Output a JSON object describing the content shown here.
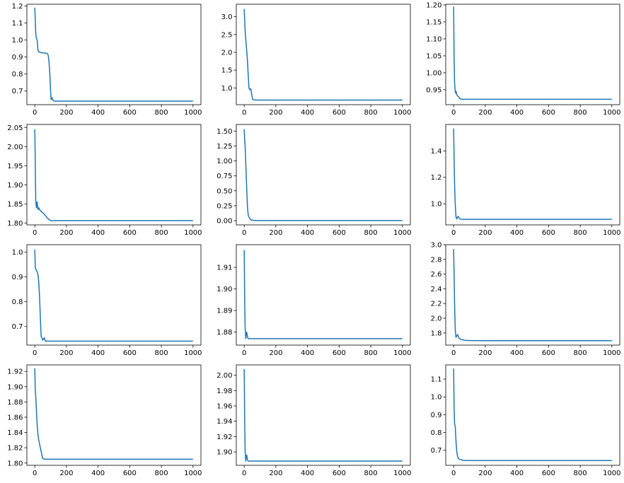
{
  "line_color": "#1f77b4",
  "chart_data": [
    {
      "type": "line",
      "xlim": [
        -50,
        1050
      ],
      "ylim": [
        0.62,
        1.21
      ],
      "xticks": [
        {
          "v": 0,
          "label": "0"
        },
        {
          "v": 200,
          "label": "200"
        },
        {
          "v": 400,
          "label": "400"
        },
        {
          "v": 600,
          "label": "600"
        },
        {
          "v": 800,
          "label": "800"
        },
        {
          "v": 1000,
          "label": "1000"
        }
      ],
      "yticks": [
        {
          "v": 0.7,
          "label": "0.7"
        },
        {
          "v": 0.8,
          "label": "0.8"
        },
        {
          "v": 0.9,
          "label": "0.9"
        },
        {
          "v": 1.0,
          "label": "1.0"
        },
        {
          "v": 1.1,
          "label": "1.1"
        },
        {
          "v": 1.2,
          "label": "1.2"
        }
      ],
      "x": [
        0,
        3,
        6,
        10,
        15,
        20,
        25,
        30,
        40,
        50,
        60,
        70,
        80,
        85,
        90,
        95,
        100,
        103,
        106,
        110,
        115,
        120,
        130,
        150,
        200,
        400,
        600,
        800,
        1000
      ],
      "y": [
        1.19,
        1.12,
        1.04,
        1.01,
        1.0,
        0.94,
        0.93,
        0.93,
        0.925,
        0.925,
        0.924,
        0.923,
        0.92,
        0.91,
        0.87,
        0.8,
        0.7,
        0.65,
        0.655,
        0.66,
        0.645,
        0.642,
        0.641,
        0.641,
        0.641,
        0.641,
        0.641,
        0.641,
        0.641
      ]
    },
    {
      "type": "line",
      "xlim": [
        -50,
        1050
      ],
      "ylim": [
        0.53,
        3.35
      ],
      "xticks": [
        {
          "v": 0,
          "label": "0"
        },
        {
          "v": 200,
          "label": "200"
        },
        {
          "v": 400,
          "label": "400"
        },
        {
          "v": 600,
          "label": "600"
        },
        {
          "v": 800,
          "label": "800"
        },
        {
          "v": 1000,
          "label": "1000"
        }
      ],
      "yticks": [
        {
          "v": 1.0,
          "label": "1.0"
        },
        {
          "v": 1.5,
          "label": "1.5"
        },
        {
          "v": 2.0,
          "label": "2.0"
        },
        {
          "v": 2.5,
          "label": "2.5"
        },
        {
          "v": 3.0,
          "label": "3.0"
        }
      ],
      "x": [
        0,
        3,
        6,
        10,
        15,
        20,
        25,
        30,
        35,
        40,
        45,
        50,
        55,
        60,
        70,
        80,
        100,
        200,
        400,
        600,
        800,
        1000
      ],
      "y": [
        3.22,
        2.9,
        2.6,
        2.35,
        2.1,
        1.8,
        1.4,
        1.0,
        0.95,
        0.98,
        0.9,
        0.75,
        0.67,
        0.67,
        0.66,
        0.66,
        0.66,
        0.66,
        0.66,
        0.66,
        0.66,
        0.66
      ]
    },
    {
      "type": "line",
      "xlim": [
        -50,
        1050
      ],
      "ylim": [
        0.906,
        1.202
      ],
      "xticks": [
        {
          "v": 0,
          "label": "0"
        },
        {
          "v": 200,
          "label": "200"
        },
        {
          "v": 400,
          "label": "400"
        },
        {
          "v": 600,
          "label": "600"
        },
        {
          "v": 800,
          "label": "800"
        },
        {
          "v": 1000,
          "label": "1000"
        }
      ],
      "yticks": [
        {
          "v": 0.95,
          "label": "0.95"
        },
        {
          "v": 1.0,
          "label": "1.00"
        },
        {
          "v": 1.05,
          "label": "1.05"
        },
        {
          "v": 1.1,
          "label": "1.10"
        },
        {
          "v": 1.15,
          "label": "1.15"
        },
        {
          "v": 1.2,
          "label": "1.20"
        }
      ],
      "x": [
        0,
        3,
        6,
        10,
        13,
        16,
        20,
        25,
        30,
        40,
        50,
        80,
        200,
        400,
        600,
        800,
        1000
      ],
      "y": [
        1.195,
        1.05,
        0.97,
        0.945,
        0.94,
        0.945,
        0.935,
        0.932,
        0.93,
        0.924,
        0.922,
        0.922,
        0.922,
        0.922,
        0.922,
        0.922,
        0.922
      ]
    },
    {
      "type": "line",
      "xlim": [
        -50,
        1050
      ],
      "ylim": [
        1.795,
        2.058
      ],
      "xticks": [
        {
          "v": 0,
          "label": "0"
        },
        {
          "v": 200,
          "label": "200"
        },
        {
          "v": 400,
          "label": "400"
        },
        {
          "v": 600,
          "label": "600"
        },
        {
          "v": 800,
          "label": "800"
        },
        {
          "v": 1000,
          "label": "1000"
        }
      ],
      "yticks": [
        {
          "v": 1.8,
          "label": "1.80"
        },
        {
          "v": 1.85,
          "label": "1.85"
        },
        {
          "v": 1.9,
          "label": "1.90"
        },
        {
          "v": 1.95,
          "label": "1.95"
        },
        {
          "v": 2.0,
          "label": "2.00"
        },
        {
          "v": 2.05,
          "label": "2.05"
        }
      ],
      "x": [
        0,
        3,
        6,
        10,
        15,
        20,
        25,
        30,
        40,
        50,
        60,
        70,
        80,
        90,
        100,
        120,
        200,
        400,
        600,
        800,
        1000
      ],
      "y": [
        2.045,
        1.96,
        1.86,
        1.84,
        1.855,
        1.835,
        1.84,
        1.835,
        1.83,
        1.827,
        1.823,
        1.818,
        1.813,
        1.809,
        1.806,
        1.806,
        1.806,
        1.806,
        1.806,
        1.806,
        1.806
      ]
    },
    {
      "type": "line",
      "xlim": [
        -50,
        1050
      ],
      "ylim": [
        -0.07,
        1.61
      ],
      "xticks": [
        {
          "v": 0,
          "label": "0"
        },
        {
          "v": 200,
          "label": "200"
        },
        {
          "v": 400,
          "label": "400"
        },
        {
          "v": 600,
          "label": "600"
        },
        {
          "v": 800,
          "label": "800"
        },
        {
          "v": 1000,
          "label": "1000"
        }
      ],
      "yticks": [
        {
          "v": 0.0,
          "label": "0.00"
        },
        {
          "v": 0.25,
          "label": "0.25"
        },
        {
          "v": 0.5,
          "label": "0.50"
        },
        {
          "v": 0.75,
          "label": "0.75"
        },
        {
          "v": 1.0,
          "label": "1.00"
        },
        {
          "v": 1.25,
          "label": "1.25"
        },
        {
          "v": 1.5,
          "label": "1.50"
        }
      ],
      "x": [
        0,
        3,
        6,
        10,
        15,
        20,
        25,
        30,
        35,
        40,
        50,
        60,
        80,
        100,
        200,
        400,
        600,
        800,
        1000
      ],
      "y": [
        1.53,
        1.35,
        1.25,
        0.95,
        0.6,
        0.25,
        0.1,
        0.06,
        0.04,
        0.02,
        0.01,
        0.005,
        0.003,
        0.002,
        0.002,
        0.002,
        0.002,
        0.002,
        0.002
      ]
    },
    {
      "type": "line",
      "xlim": [
        -50,
        1050
      ],
      "ylim": [
        0.84,
        1.6
      ],
      "xticks": [
        {
          "v": 0,
          "label": "0"
        },
        {
          "v": 200,
          "label": "200"
        },
        {
          "v": 400,
          "label": "400"
        },
        {
          "v": 600,
          "label": "600"
        },
        {
          "v": 800,
          "label": "800"
        },
        {
          "v": 1000,
          "label": "1000"
        }
      ],
      "yticks": [
        {
          "v": 1.0,
          "label": "1.0"
        },
        {
          "v": 1.2,
          "label": "1.2"
        },
        {
          "v": 1.4,
          "label": "1.4"
        }
      ],
      "x": [
        0,
        3,
        6,
        10,
        15,
        20,
        25,
        30,
        35,
        40,
        50,
        60,
        80,
        200,
        400,
        600,
        800,
        1000
      ],
      "y": [
        1.57,
        1.35,
        1.15,
        1.0,
        0.9,
        0.885,
        0.9,
        0.905,
        0.89,
        0.885,
        0.883,
        0.882,
        0.882,
        0.882,
        0.882,
        0.882,
        0.882,
        0.882
      ]
    },
    {
      "type": "line",
      "xlim": [
        -50,
        1050
      ],
      "ylim": [
        0.625,
        1.03
      ],
      "xticks": [
        {
          "v": 0,
          "label": "0"
        },
        {
          "v": 200,
          "label": "200"
        },
        {
          "v": 400,
          "label": "400"
        },
        {
          "v": 600,
          "label": "600"
        },
        {
          "v": 800,
          "label": "800"
        },
        {
          "v": 1000,
          "label": "1000"
        }
      ],
      "yticks": [
        {
          "v": 0.7,
          "label": "0.7"
        },
        {
          "v": 0.8,
          "label": "0.8"
        },
        {
          "v": 0.9,
          "label": "0.9"
        },
        {
          "v": 1.0,
          "label": "1.0"
        }
      ],
      "x": [
        0,
        3,
        6,
        10,
        15,
        20,
        25,
        30,
        35,
        40,
        45,
        50,
        55,
        60,
        65,
        70,
        80,
        100,
        200,
        400,
        600,
        800,
        1000
      ],
      "y": [
        1.01,
        0.94,
        0.93,
        0.928,
        0.92,
        0.91,
        0.88,
        0.82,
        0.74,
        0.66,
        0.655,
        0.645,
        0.65,
        0.655,
        0.643,
        0.641,
        0.641,
        0.641,
        0.641,
        0.641,
        0.641,
        0.641,
        0.641
      ]
    },
    {
      "type": "line",
      "xlim": [
        -50,
        1050
      ],
      "ylim": [
        1.874,
        1.9205
      ],
      "xticks": [
        {
          "v": 0,
          "label": "0"
        },
        {
          "v": 200,
          "label": "200"
        },
        {
          "v": 400,
          "label": "400"
        },
        {
          "v": 600,
          "label": "600"
        },
        {
          "v": 800,
          "label": "800"
        },
        {
          "v": 1000,
          "label": "1000"
        }
      ],
      "yticks": [
        {
          "v": 1.88,
          "label": "1.88"
        },
        {
          "v": 1.89,
          "label": "1.89"
        },
        {
          "v": 1.9,
          "label": "1.90"
        },
        {
          "v": 1.91,
          "label": "1.91"
        }
      ],
      "x": [
        0,
        3,
        6,
        10,
        13,
        16,
        20,
        25,
        30,
        40,
        60,
        200,
        400,
        600,
        800,
        1000
      ],
      "y": [
        1.918,
        1.895,
        1.882,
        1.877,
        1.879,
        1.88,
        1.878,
        1.877,
        1.877,
        1.877,
        1.877,
        1.877,
        1.877,
        1.877,
        1.877,
        1.877
      ]
    },
    {
      "type": "line",
      "xlim": [
        -50,
        1050
      ],
      "ylim": [
        1.635,
        3.0
      ],
      "xticks": [
        {
          "v": 0,
          "label": "0"
        },
        {
          "v": 200,
          "label": "200"
        },
        {
          "v": 400,
          "label": "400"
        },
        {
          "v": 600,
          "label": "600"
        },
        {
          "v": 800,
          "label": "800"
        },
        {
          "v": 1000,
          "label": "1000"
        }
      ],
      "yticks": [
        {
          "v": 1.8,
          "label": "1.8"
        },
        {
          "v": 2.0,
          "label": "2.0"
        },
        {
          "v": 2.2,
          "label": "2.2"
        },
        {
          "v": 2.4,
          "label": "2.4"
        },
        {
          "v": 2.6,
          "label": "2.6"
        },
        {
          "v": 2.8,
          "label": "2.8"
        },
        {
          "v": 3.0,
          "label": "3.0"
        }
      ],
      "x": [
        0,
        3,
        6,
        10,
        15,
        20,
        25,
        30,
        35,
        40,
        50,
        60,
        70,
        80,
        100,
        120,
        200,
        400,
        600,
        800,
        1000
      ],
      "y": [
        2.94,
        2.6,
        2.2,
        1.85,
        1.74,
        1.76,
        1.78,
        1.75,
        1.73,
        1.72,
        1.71,
        1.705,
        1.7,
        1.698,
        1.697,
        1.696,
        1.695,
        1.695,
        1.695,
        1.695,
        1.695
      ]
    },
    {
      "type": "line",
      "xlim": [
        -50,
        1050
      ],
      "ylim": [
        1.797,
        1.9285
      ],
      "xticks": [
        {
          "v": 0,
          "label": "0"
        },
        {
          "v": 200,
          "label": "200"
        },
        {
          "v": 400,
          "label": "400"
        },
        {
          "v": 600,
          "label": "600"
        },
        {
          "v": 800,
          "label": "800"
        },
        {
          "v": 1000,
          "label": "1000"
        }
      ],
      "yticks": [
        {
          "v": 1.8,
          "label": "1.80"
        },
        {
          "v": 1.82,
          "label": "1.82"
        },
        {
          "v": 1.84,
          "label": "1.84"
        },
        {
          "v": 1.86,
          "label": "1.86"
        },
        {
          "v": 1.88,
          "label": "1.88"
        },
        {
          "v": 1.9,
          "label": "1.90"
        },
        {
          "v": 1.92,
          "label": "1.92"
        }
      ],
      "x": [
        0,
        3,
        6,
        10,
        15,
        20,
        25,
        30,
        40,
        50,
        60,
        70,
        80,
        100,
        200,
        400,
        600,
        800,
        1000
      ],
      "y": [
        1.924,
        1.895,
        1.888,
        1.87,
        1.85,
        1.838,
        1.83,
        1.825,
        1.815,
        1.806,
        1.805,
        1.805,
        1.805,
        1.805,
        1.805,
        1.805,
        1.805,
        1.805,
        1.805
      ]
    },
    {
      "type": "line",
      "xlim": [
        -50,
        1050
      ],
      "ylim": [
        1.8825,
        2.0135
      ],
      "xticks": [
        {
          "v": 0,
          "label": "0"
        },
        {
          "v": 200,
          "label": "200"
        },
        {
          "v": 400,
          "label": "400"
        },
        {
          "v": 600,
          "label": "600"
        },
        {
          "v": 800,
          "label": "800"
        },
        {
          "v": 1000,
          "label": "1000"
        }
      ],
      "yticks": [
        {
          "v": 1.9,
          "label": "1.90"
        },
        {
          "v": 1.92,
          "label": "1.92"
        },
        {
          "v": 1.94,
          "label": "1.94"
        },
        {
          "v": 1.96,
          "label": "1.96"
        },
        {
          "v": 1.98,
          "label": "1.98"
        },
        {
          "v": 2.0,
          "label": "2.00"
        }
      ],
      "x": [
        0,
        3,
        6,
        10,
        13,
        16,
        20,
        25,
        30,
        40,
        60,
        100,
        200,
        400,
        600,
        800,
        1000
      ],
      "y": [
        2.008,
        1.94,
        1.9,
        1.888,
        1.895,
        1.896,
        1.89,
        1.888,
        1.888,
        1.888,
        1.888,
        1.888,
        1.888,
        1.888,
        1.888,
        1.888,
        1.888
      ]
    },
    {
      "type": "line",
      "xlim": [
        -50,
        1050
      ],
      "ylim": [
        0.615,
        1.18
      ],
      "xticks": [
        {
          "v": 0,
          "label": "0"
        },
        {
          "v": 200,
          "label": "200"
        },
        {
          "v": 400,
          "label": "400"
        },
        {
          "v": 600,
          "label": "600"
        },
        {
          "v": 800,
          "label": "800"
        },
        {
          "v": 1000,
          "label": "1000"
        }
      ],
      "yticks": [
        {
          "v": 0.7,
          "label": "0.7"
        },
        {
          "v": 0.8,
          "label": "0.8"
        },
        {
          "v": 0.9,
          "label": "0.9"
        },
        {
          "v": 1.0,
          "label": "1.0"
        },
        {
          "v": 1.1,
          "label": "1.1"
        }
      ],
      "x": [
        0,
        3,
        6,
        10,
        15,
        20,
        25,
        30,
        35,
        40,
        50,
        60,
        80,
        100,
        200,
        400,
        600,
        800,
        1000
      ],
      "y": [
        1.16,
        0.95,
        0.85,
        0.835,
        0.75,
        0.69,
        0.665,
        0.655,
        0.65,
        0.648,
        0.645,
        0.643,
        0.642,
        0.642,
        0.642,
        0.642,
        0.642,
        0.642,
        0.642
      ]
    }
  ]
}
